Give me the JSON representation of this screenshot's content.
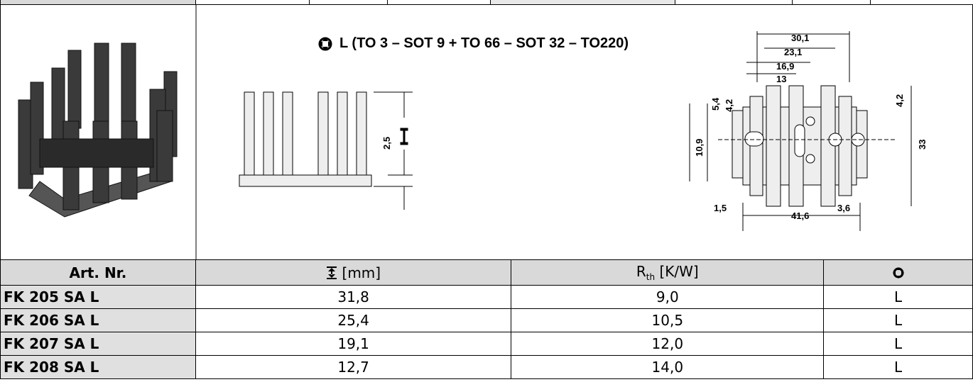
{
  "drawing": {
    "title": "L (TO 3 – SOT 9 + TO 66 – SOT 32 – TO220)",
    "side_dim": "2,5",
    "dims": {
      "w301": "30,1",
      "w231": "23,1",
      "w169": "16,9",
      "w13": "13",
      "h54": "5,4",
      "h42a": "4,2",
      "h42b": "4,2",
      "h33": "33",
      "h109": "10,9",
      "w15": "1,5",
      "w36": "3,6",
      "w416": "41,6"
    }
  },
  "table": {
    "header": {
      "art": "Art. Nr.",
      "height": "[mm]",
      "rth_main": "R",
      "rth_sub": "th",
      "rth_unit": "[K/W]"
    },
    "rows": [
      [
        "FK 205 SA L",
        "31,8",
        "9,0",
        "L"
      ],
      [
        "FK 206 SA L",
        "25,4",
        "10,5",
        "L"
      ],
      [
        "FK 207 SA L",
        "19,1",
        "12,0",
        "L"
      ],
      [
        "FK 208 SA L",
        "12,7",
        "14,0",
        "L"
      ]
    ]
  }
}
